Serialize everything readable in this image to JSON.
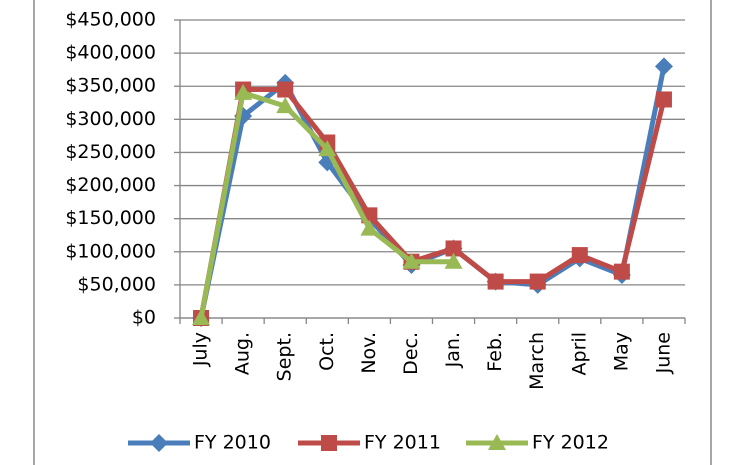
{
  "chart_data": {
    "type": "line",
    "categories": [
      "July",
      "Aug.",
      "Sept.",
      "Oct.",
      "Nov.",
      "Dec.",
      "Jan.",
      "Feb.",
      "March",
      "April",
      "May",
      "June"
    ],
    "series": [
      {
        "name": "FY 2010",
        "color": "#4a7ebb",
        "marker": "diamond",
        "values": [
          0,
          305000,
          355000,
          235000,
          150000,
          80000,
          105000,
          55000,
          50000,
          90000,
          65000,
          380000
        ]
      },
      {
        "name": "FY 2011",
        "color": "#be4b48",
        "marker": "square",
        "values": [
          0,
          345000,
          345000,
          265000,
          155000,
          85000,
          105000,
          55000,
          55000,
          95000,
          70000,
          330000
        ]
      },
      {
        "name": "FY 2012",
        "color": "#98b954",
        "marker": "triangle",
        "values": [
          0,
          340000,
          320000,
          255000,
          135000,
          85000,
          85000,
          null,
          null,
          null,
          null,
          null
        ]
      }
    ],
    "ylim": [
      0,
      450000
    ],
    "yticks": [
      {
        "value": 0,
        "label": "$0"
      },
      {
        "value": 50000,
        "label": "$50,000"
      },
      {
        "value": 100000,
        "label": "$100,000"
      },
      {
        "value": 150000,
        "label": "$150,000"
      },
      {
        "value": 200000,
        "label": "$200,000"
      },
      {
        "value": 250000,
        "label": "$250,000"
      },
      {
        "value": 300000,
        "label": "$300,000"
      },
      {
        "value": 350000,
        "label": "$350,000"
      },
      {
        "value": 400000,
        "label": "$400,000"
      },
      {
        "value": 450000,
        "label": "$450,000"
      }
    ],
    "grid": true,
    "legend": "bottom"
  }
}
